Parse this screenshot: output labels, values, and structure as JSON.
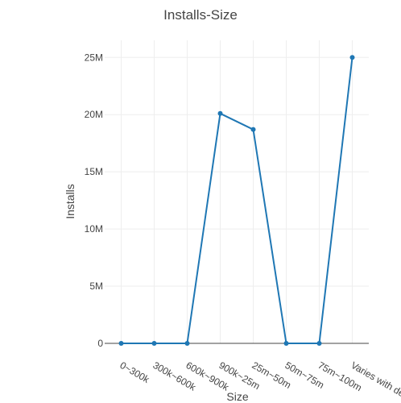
{
  "chart_data": {
    "type": "line",
    "title": "Installs-Size",
    "xlabel": "Size",
    "ylabel": "Installs",
    "categories": [
      "0~300k",
      "300k~600k",
      "600k~900k",
      "900k~25m",
      "25m~50m",
      "50m~75m",
      "75m~100m",
      "Varies with device"
    ],
    "series": [
      {
        "values": [
          0,
          0,
          0,
          20100000,
          18700000,
          0,
          0,
          25000000
        ]
      }
    ],
    "ylim": [
      0,
      26500000
    ],
    "yticks": [
      0,
      5000000,
      10000000,
      15000000,
      20000000,
      25000000
    ],
    "ytick_labels": [
      "0",
      "5M",
      "10M",
      "15M",
      "20M",
      "25M"
    ],
    "grid": true,
    "line_color": "#1f77b4"
  }
}
